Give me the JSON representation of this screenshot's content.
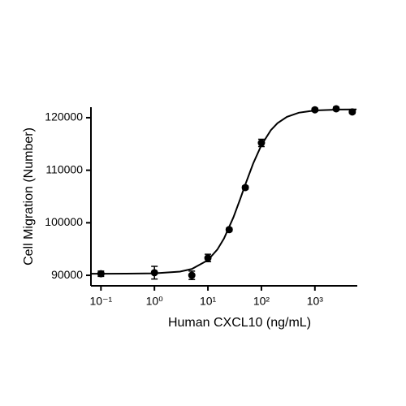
{
  "chart_data": {
    "type": "scatter",
    "xlabel": "Human CXCL10 (ng/mL)",
    "ylabel": "Cell Migration (Number)",
    "xscale": "log",
    "xlim": [
      0.065,
      6200
    ],
    "ylim": [
      88000,
      122000
    ],
    "xticks": [
      {
        "value": 0.1,
        "label": "10⁻¹"
      },
      {
        "value": 1,
        "label": "10⁰"
      },
      {
        "value": 10,
        "label": "10¹"
      },
      {
        "value": 100,
        "label": "10²"
      },
      {
        "value": 1000,
        "label": "10³"
      }
    ],
    "yticks": [
      90000,
      100000,
      110000,
      120000
    ],
    "series": [
      {
        "color": "#000000",
        "x": [
          0.1,
          1,
          5,
          10,
          25,
          50,
          100,
          1000,
          2500,
          5000
        ],
        "values": [
          90300,
          90500,
          90000,
          93300,
          98700,
          106700,
          115200,
          121500,
          121700,
          121100
        ],
        "errors": [
          500,
          1200,
          800,
          700,
          300,
          300,
          700,
          300,
          300,
          300
        ]
      },
      {
        "color": "#000000",
        "line": true,
        "x": [
          0.066,
          0.1,
          0.3,
          1,
          3,
          5,
          10,
          15,
          20,
          30,
          40,
          50,
          70,
          100,
          150,
          200,
          300,
          500,
          1000,
          3000,
          6000
        ],
        "values": [
          90301,
          90300,
          90310,
          90371,
          90705,
          91205,
          92887,
          94903,
          97017,
          101045,
          104482,
          107265,
          111264,
          114773,
          117620,
          118966,
          120164,
          120950,
          121382,
          121562,
          121580
        ]
      }
    ]
  }
}
